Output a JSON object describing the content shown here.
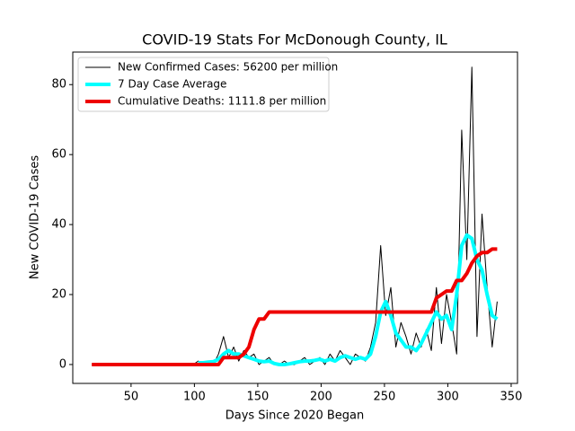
{
  "chart_data": {
    "type": "line",
    "title": "COVID-19 Stats For McDonough County, IL",
    "x_label": "Days Since 2020 Began",
    "y_label": "New COVID-19 Cases",
    "xlim": [
      4,
      355
    ],
    "ylim": [
      -5.4,
      89.3
    ],
    "xticks": [
      50,
      100,
      150,
      200,
      250,
      300,
      350
    ],
    "yticks": [
      0,
      20,
      40,
      60,
      80
    ],
    "legend": "upper left",
    "x": [
      19,
      23,
      27,
      31,
      35,
      39,
      43,
      47,
      51,
      55,
      59,
      63,
      67,
      71,
      75,
      79,
      83,
      87,
      91,
      95,
      99,
      103,
      107,
      111,
      115,
      119,
      123,
      127,
      131,
      135,
      139,
      143,
      147,
      151,
      155,
      159,
      163,
      167,
      171,
      175,
      179,
      183,
      187,
      191,
      195,
      199,
      203,
      207,
      211,
      215,
      219,
      223,
      227,
      231,
      235,
      239,
      243,
      247,
      251,
      255,
      259,
      263,
      267,
      271,
      275,
      279,
      283,
      287,
      291,
      295,
      299,
      303,
      307,
      311,
      315,
      319,
      323,
      327,
      331,
      335,
      339
    ],
    "series": [
      {
        "name": "New Confirmed Cases: 56200 per million",
        "color": "#000000",
        "linewidth": 1,
        "values": [
          0,
          0,
          0,
          0,
          0,
          0,
          0,
          0,
          0,
          0,
          0,
          0,
          0,
          0,
          0,
          0,
          0,
          0,
          0,
          0,
          0,
          1,
          0,
          1,
          0,
          3,
          8,
          2,
          5,
          1,
          4,
          2,
          3,
          0,
          1,
          2,
          0,
          0,
          1,
          0,
          0,
          1,
          2,
          0,
          1,
          2,
          0,
          3,
          1,
          4,
          2,
          0,
          3,
          2,
          1,
          5,
          12,
          34,
          14,
          22,
          5,
          12,
          8,
          3,
          9,
          5,
          10,
          4,
          22,
          6,
          20,
          12,
          3,
          67,
          30,
          85,
          8,
          43,
          22,
          5,
          18
        ]
      },
      {
        "name": "7 Day Case Average",
        "color": "#00ffff",
        "linewidth": 4,
        "values": [
          null,
          null,
          null,
          null,
          null,
          null,
          null,
          null,
          null,
          null,
          null,
          null,
          null,
          null,
          null,
          null,
          null,
          null,
          null,
          null,
          null,
          0.5,
          0.5,
          0.7,
          0.8,
          1.5,
          3,
          4,
          3,
          3,
          2.5,
          2,
          1.5,
          1,
          0.8,
          1,
          0.3,
          0,
          0,
          0.2,
          0.5,
          0.8,
          1,
          1,
          1.2,
          1.5,
          1,
          1.5,
          1,
          2,
          2.5,
          2,
          1.5,
          2,
          1.5,
          3,
          8,
          15,
          18,
          14,
          9,
          7,
          5,
          5,
          4,
          6,
          9,
          12,
          15,
          13,
          14,
          10,
          20,
          34,
          37,
          36,
          30,
          27,
          20,
          14,
          13
        ]
      },
      {
        "name": "Cumulative Deaths: 1111.8 per million",
        "color": "#ee0000",
        "linewidth": 4,
        "values": [
          0,
          0,
          0,
          0,
          0,
          0,
          0,
          0,
          0,
          0,
          0,
          0,
          0,
          0,
          0,
          0,
          0,
          0,
          0,
          0,
          0,
          0,
          0,
          0,
          0,
          0,
          2,
          2,
          2,
          2,
          3,
          5,
          10,
          13,
          13,
          15,
          15,
          15,
          15,
          15,
          15,
          15,
          15,
          15,
          15,
          15,
          15,
          15,
          15,
          15,
          15,
          15,
          15,
          15,
          15,
          15,
          15,
          15,
          15,
          15,
          15,
          15,
          15,
          15,
          15,
          15,
          15,
          15,
          19,
          20,
          21,
          21,
          24,
          24,
          26,
          29,
          31,
          32,
          32,
          33,
          33
        ]
      }
    ]
  }
}
